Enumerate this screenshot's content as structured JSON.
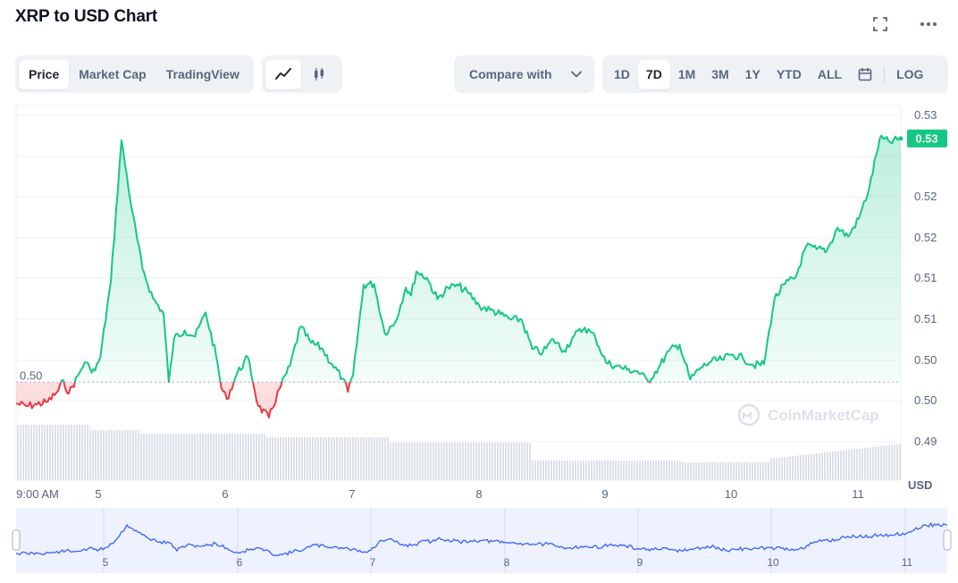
{
  "header": {
    "title": "XRP to USD Chart",
    "fullscreen_icon": "fullscreen-icon",
    "more_icon": "more-horizontal-icon"
  },
  "toolbar": {
    "view_tabs": [
      {
        "label": "Price",
        "active": true
      },
      {
        "label": "Market Cap",
        "active": false
      },
      {
        "label": "TradingView",
        "active": false
      }
    ],
    "chart_type_buttons": [
      {
        "icon": "line-chart-icon",
        "active": true
      },
      {
        "icon": "candlestick-icon",
        "active": false
      }
    ],
    "compare_label": "Compare with",
    "compare_icon": "chevron-down-icon",
    "ranges": [
      {
        "label": "1D",
        "active": false
      },
      {
        "label": "7D",
        "active": true
      },
      {
        "label": "1M",
        "active": false
      },
      {
        "label": "3M",
        "active": false
      },
      {
        "label": "1Y",
        "active": false
      },
      {
        "label": "YTD",
        "active": false
      },
      {
        "label": "ALL",
        "active": false
      }
    ],
    "calendar_icon": "calendar-icon",
    "log_label": "LOG"
  },
  "chart_data": {
    "type": "area",
    "currency_label": "USD",
    "baseline_label": "0.50",
    "baseline": 0.5025,
    "current_price_label": "0.53",
    "y_ticks": [
      "0.53",
      "0.52",
      "0.52",
      "0.51",
      "0.51",
      "0.50",
      "0.50",
      "0.49"
    ],
    "ylim": [
      0.4925,
      0.5325
    ],
    "x_ticks": [
      "9:00 AM",
      "5",
      "6",
      "7",
      "8",
      "9",
      "10",
      "11"
    ],
    "navigator_ticks": [
      "5",
      "6",
      "7",
      "8",
      "9",
      "10",
      "11"
    ],
    "watermark": "CoinMarketCap",
    "colors": {
      "up": "#16c784",
      "down": "#ea3943",
      "nav_line": "#3861fb",
      "nav_fill": "#eef1fe"
    },
    "x": [
      0,
      2,
      4,
      6,
      8,
      9,
      10,
      12,
      13,
      14,
      15,
      16,
      18,
      20,
      22,
      24,
      26,
      28,
      29,
      30,
      32,
      34,
      36,
      38,
      39,
      40,
      42,
      44,
      46,
      48,
      50,
      52,
      54,
      56,
      58,
      60,
      62,
      63,
      64,
      66,
      68,
      70,
      72,
      74,
      75,
      76,
      78,
      80,
      82,
      84,
      86,
      88,
      90,
      92,
      94,
      96,
      98,
      100,
      102,
      104,
      106,
      108,
      110,
      112,
      114,
      116,
      118,
      120,
      122,
      124,
      126,
      128,
      130,
      132,
      134,
      136,
      138,
      140,
      142,
      144,
      146,
      148,
      150,
      152,
      154,
      156,
      158,
      160,
      162,
      164,
      166,
      168
    ],
    "y": [
      0.5001,
      0.4998,
      0.5,
      0.5003,
      0.5015,
      0.5027,
      0.5012,
      0.5035,
      0.5047,
      0.5041,
      0.5038,
      0.5053,
      0.5138,
      0.5296,
      0.5218,
      0.5152,
      0.5119,
      0.5102,
      0.5025,
      0.5074,
      0.5083,
      0.5076,
      0.5103,
      0.5054,
      0.5018,
      0.5006,
      0.5035,
      0.5053,
      0.4998,
      0.4985,
      0.5017,
      0.5043,
      0.5087,
      0.5069,
      0.5063,
      0.5045,
      0.5029,
      0.5014,
      0.5033,
      0.5134,
      0.5135,
      0.508,
      0.5092,
      0.5131,
      0.5122,
      0.5149,
      0.5142,
      0.5118,
      0.5131,
      0.5133,
      0.5124,
      0.511,
      0.5106,
      0.5101,
      0.5095,
      0.5095,
      0.5062,
      0.5058,
      0.5073,
      0.506,
      0.5077,
      0.5086,
      0.5075,
      0.5047,
      0.5043,
      0.5039,
      0.5037,
      0.5026,
      0.5041,
      0.506,
      0.5067,
      0.5028,
      0.5041,
      0.5048,
      0.505,
      0.5056,
      0.5052,
      0.5044,
      0.5045,
      0.5118,
      0.5135,
      0.5142,
      0.5177,
      0.5174,
      0.5173,
      0.5198,
      0.5188,
      0.5208,
      0.5242,
      0.5298,
      0.5294,
      0.5298
    ]
  }
}
